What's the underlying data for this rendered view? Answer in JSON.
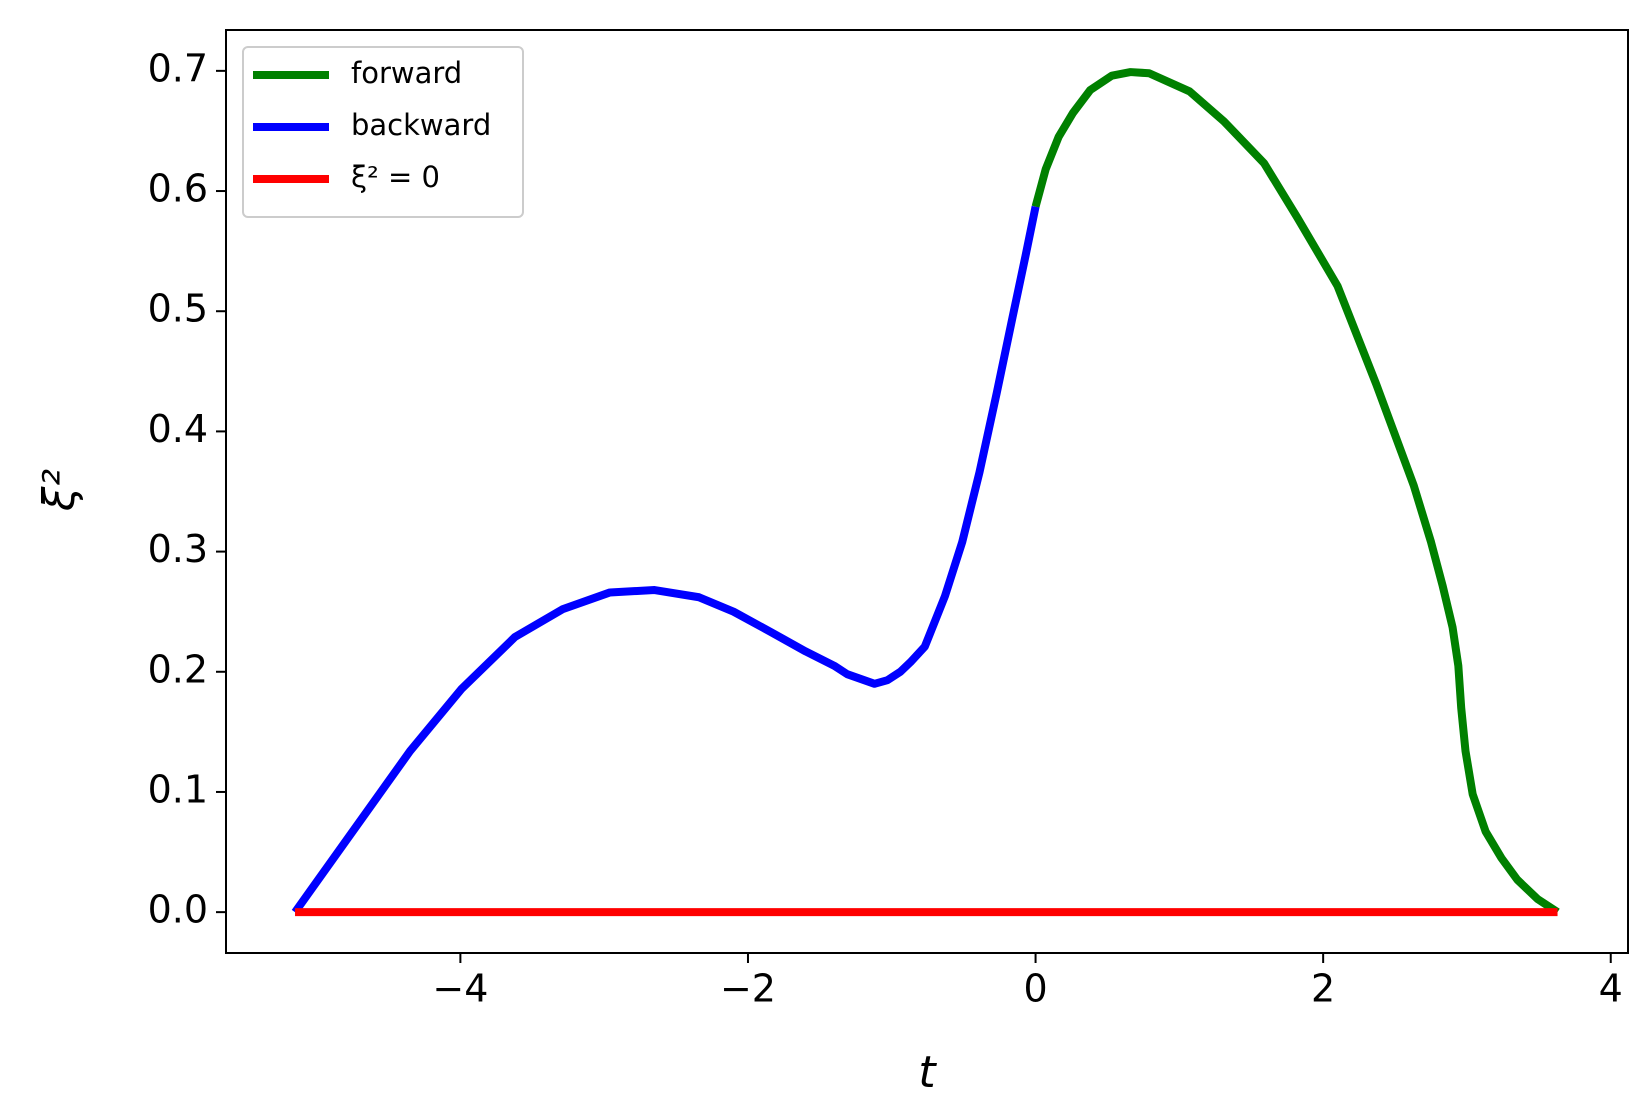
{
  "chart_data": {
    "type": "line",
    "xlabel": "t",
    "ylabel": "ξ²",
    "xlim": [
      -5.63,
      4.12
    ],
    "ylim": [
      -0.034,
      0.734
    ],
    "xticks": [
      {
        "value": -4,
        "label": "−4"
      },
      {
        "value": -2,
        "label": "−2"
      },
      0,
      2,
      4
    ],
    "yticks": [
      {
        "value": 0,
        "label": "0.0"
      },
      0.1,
      0.2,
      0.3,
      0.4,
      0.5,
      0.6,
      0.7
    ],
    "legend": "upper left",
    "series": [
      {
        "name": "forward",
        "color": "#008000",
        "x": [
          0,
          0.07,
          0.16,
          0.26,
          0.38,
          0.53,
          0.66,
          0.79,
          1.07,
          1.31,
          1.59,
          1.82,
          2.1,
          2.37,
          2.63,
          2.75,
          2.83,
          2.9,
          2.94,
          2.96,
          2.99,
          3.04,
          3.13,
          3.24,
          3.35,
          3.49,
          3.63
        ],
        "values": [
          0.587,
          0.618,
          0.645,
          0.665,
          0.684,
          0.696,
          0.699,
          0.698,
          0.683,
          0.658,
          0.623,
          0.578,
          0.521,
          0.439,
          0.355,
          0.308,
          0.272,
          0.237,
          0.205,
          0.17,
          0.134,
          0.098,
          0.067,
          0.045,
          0.027,
          0.011,
          0
        ]
      },
      {
        "name": "backward",
        "color": "#0000ff",
        "x": [
          -5.15,
          -4.35,
          -3.99,
          -3.62,
          -3.29,
          -2.96,
          -2.65,
          -2.34,
          -2.1,
          -1.84,
          -1.6,
          -1.4,
          -1.31,
          -1.12,
          -1.03,
          -0.94,
          -0.87,
          -0.77,
          -0.63,
          -0.51,
          -0.39,
          -0.27,
          -0.16,
          -0.07,
          0
        ],
        "values": [
          0,
          0.134,
          0.186,
          0.229,
          0.252,
          0.266,
          0.268,
          0.262,
          0.25,
          0.233,
          0.217,
          0.205,
          0.198,
          0.19,
          0.193,
          0.2,
          0.208,
          0.221,
          0.263,
          0.308,
          0.366,
          0.432,
          0.495,
          0.546,
          0.587
        ]
      },
      {
        "name": "ξ² = 0",
        "color": "#ff0000",
        "x": [
          -5.15,
          3.63
        ],
        "values": [
          0,
          0
        ]
      }
    ]
  }
}
